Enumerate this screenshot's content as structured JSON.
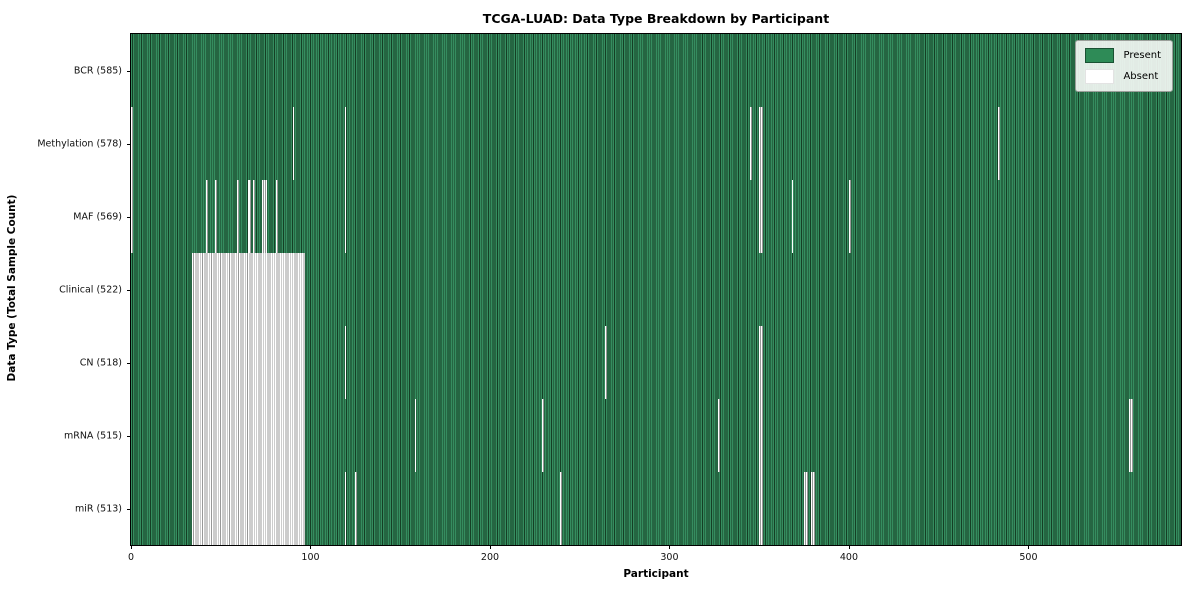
{
  "title": "TCGA-LUAD: Data Type Breakdown by Participant",
  "axes": {
    "xlabel": "Participant",
    "ylabel": "Data Type (Total Sample Count)"
  },
  "legend": {
    "present_label": "Present",
    "absent_label": "Absent"
  },
  "colors": {
    "present": "#2e8b57",
    "present_edge": "#153f25",
    "absent": "#ffffff",
    "absent_edge": "#989898"
  },
  "chart_data": {
    "type": "heatmap",
    "title": "TCGA-LUAD: Data Type Breakdown by Participant",
    "xlabel": "Participant",
    "ylabel": "Data Type (Total Sample Count)",
    "legend_entries": [
      "Present",
      "Absent"
    ],
    "legend_position": "upper right",
    "grid": false,
    "total_participants": 585,
    "x_range": [
      0,
      585
    ],
    "x_ticks": [
      0,
      100,
      200,
      300,
      400,
      500
    ],
    "rows": [
      {
        "name": "BCR",
        "label": "BCR (585)",
        "present_count": 585,
        "absent_count": 0,
        "absent_participants": []
      },
      {
        "name": "Methylation",
        "label": "Methylation (578)",
        "present_count": 578,
        "absent_count": 7,
        "absent_participants": [
          0,
          90,
          119,
          345,
          350,
          351,
          483
        ]
      },
      {
        "name": "MAF",
        "label": "MAF (569)",
        "present_count": 569,
        "absent_count": 16,
        "absent_participants": [
          0,
          42,
          47,
          59,
          65,
          66,
          68,
          73,
          74,
          75,
          81,
          119,
          350,
          351,
          368,
          400
        ]
      },
      {
        "name": "Clinical",
        "label": "Clinical (522)",
        "present_count": 522,
        "absent_count": 63,
        "absent_participants": [
          [
            34,
            96
          ]
        ]
      },
      {
        "name": "CN",
        "label": "CN (518)",
        "present_count": 518,
        "absent_count": 67,
        "absent_participants": [
          [
            34,
            96
          ],
          119,
          264,
          350,
          351
        ]
      },
      {
        "name": "mRNA",
        "label": "mRNA (515)",
        "present_count": 515,
        "absent_count": 70,
        "absent_participants": [
          [
            34,
            96
          ],
          158,
          229,
          327,
          350,
          351,
          556,
          557
        ]
      },
      {
        "name": "miR",
        "label": "miR (513)",
        "present_count": 513,
        "absent_count": 72,
        "absent_participants": [
          [
            34,
            96
          ],
          119,
          125,
          239,
          350,
          351,
          375,
          376,
          379,
          380
        ]
      }
    ]
  }
}
